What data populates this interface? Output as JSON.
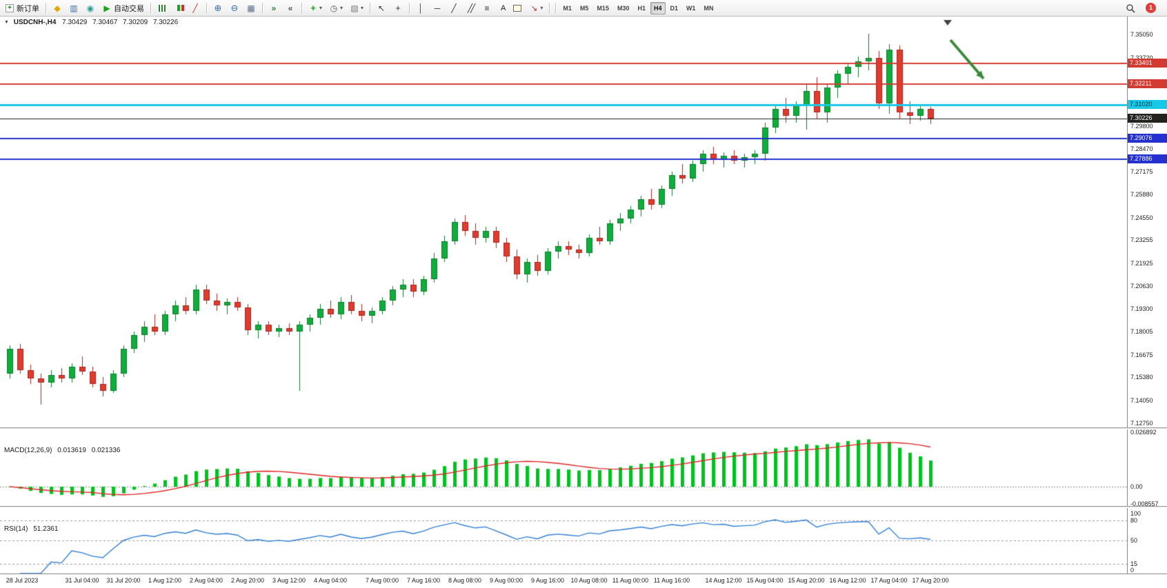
{
  "toolbar": {
    "notification_count": "1",
    "timeframes": [
      "M1",
      "M5",
      "M15",
      "M30",
      "H1",
      "H4",
      "D1",
      "W1",
      "MN"
    ],
    "active_timeframe": "H4",
    "buttons": [
      {
        "name": "new-order-button",
        "icon": "new-order",
        "label": "新订单"
      },
      "sep",
      {
        "name": "metaeditor-button",
        "icon": "metaeditor"
      },
      {
        "name": "market-watch-button",
        "icon": "market-watch"
      },
      {
        "name": "refresh-button",
        "icon": "refresh"
      },
      {
        "name": "autotrading-button",
        "icon": "autotrading",
        "label": "自动交易"
      },
      "sep",
      {
        "name": "bar-chart-button",
        "icon": "bars"
      },
      {
        "name": "candle-chart-button",
        "icon": "candles"
      },
      {
        "name": "line-chart-button",
        "icon": "line-chart"
      },
      "sep",
      {
        "name": "zoom-in-button",
        "icon": "zoom-in"
      },
      {
        "name": "zoom-out-button",
        "icon": "zoom-out"
      },
      {
        "name": "tile-windows-button",
        "icon": "tile-windows"
      },
      "sep",
      {
        "name": "auto-scroll-button",
        "icon": "auto-scroll"
      },
      {
        "name": "chart-shift-button",
        "icon": "chart-shift"
      },
      "sep",
      {
        "name": "indicators-button",
        "icon": "indicators",
        "caret": true
      },
      {
        "name": "periods-button",
        "icon": "periods",
        "caret": true
      },
      {
        "name": "templates-button",
        "icon": "templates",
        "caret": true
      },
      "sep",
      {
        "name": "cursor-button",
        "icon": "cursor"
      },
      {
        "name": "crosshair-button",
        "icon": "crosshair"
      },
      "sep",
      {
        "name": "vertical-line-button",
        "icon": "vline"
      },
      {
        "name": "horizontal-line-button",
        "icon": "hline"
      },
      {
        "name": "trendline-button",
        "icon": "trendline"
      },
      {
        "name": "channel-button",
        "icon": "channel"
      },
      {
        "name": "fibonacci-button",
        "icon": "fibo"
      },
      {
        "name": "text-tool-button",
        "label": "A"
      },
      {
        "name": "text-label-button",
        "icon": "text-label"
      },
      {
        "name": "arrows-button",
        "icon": "arrows",
        "caret": true
      },
      "sep"
    ]
  },
  "chart": {
    "title": "USDCNH-,H4",
    "open": "7.30429",
    "high": "7.30467",
    "low": "7.30209",
    "close": "7.30226"
  },
  "price_axis": {
    "ticks": [
      {
        "label": "7.35050",
        "value": 7.3505
      },
      {
        "label": "7.33720",
        "value": 7.3372
      },
      {
        "label": "7.29800",
        "value": 7.298
      },
      {
        "label": "7.28470",
        "value": 7.2847
      },
      {
        "label": "7.27175",
        "value": 7.27175
      },
      {
        "label": "7.25880",
        "value": 7.2588
      },
      {
        "label": "7.24550",
        "value": 7.2455
      },
      {
        "label": "7.23255",
        "value": 7.23255
      },
      {
        "label": "7.21925",
        "value": 7.21925
      },
      {
        "label": "7.20630",
        "value": 7.2063
      },
      {
        "label": "7.19300",
        "value": 7.193
      },
      {
        "label": "7.18005",
        "value": 7.18005
      },
      {
        "label": "7.16675",
        "value": 7.16675
      },
      {
        "label": "7.15380",
        "value": 7.1538
      },
      {
        "label": "7.14050",
        "value": 7.1405
      },
      {
        "label": "7.12750",
        "value": 7.1275
      }
    ]
  },
  "price_lines": [
    {
      "name": "resistance-line-1",
      "label": "7.33401",
      "value": 7.33401,
      "color": "#d23b32",
      "width": 2,
      "badge_bg": "#d23b32",
      "badge_fg": "#ffffff"
    },
    {
      "name": "resistance-line-2",
      "label": "7.32211",
      "value": 7.32211,
      "color": "#d23b32",
      "width": 2,
      "badge_bg": "#d23b32",
      "badge_fg": "#ffffff"
    },
    {
      "name": "pivot-line",
      "label": "7.31020",
      "value": 7.3102,
      "color": "#17c8e8",
      "width": 3,
      "badge_bg": "#17c8e8",
      "badge_fg": "#00323c"
    },
    {
      "name": "current-price-line",
      "label": "7.30226",
      "value": 7.30226,
      "color": "#23221e",
      "width": 1,
      "badge_bg": "#23221e",
      "badge_fg": "#ffffff"
    },
    {
      "name": "support-line-1",
      "label": "7.29076",
      "value": 7.29076,
      "color": "#2430cf",
      "width": 2,
      "badge_bg": "#2430cf",
      "badge_fg": "#ffffff"
    },
    {
      "name": "support-line-2",
      "label": "7.27886",
      "value": 7.27886,
      "color": "#2430cf",
      "width": 2,
      "badge_bg": "#2430cf",
      "badge_fg": "#ffffff"
    }
  ],
  "indicators": {
    "macd": {
      "title": "MACD(12,26,9)",
      "main_value": "0.013619",
      "signal_value": "0.021336",
      "fast": 12,
      "slow": 26,
      "signal": 9,
      "histogram_color": "#00c41e",
      "signal_color": "#e02222",
      "range": [
        -0.0095,
        0.0285
      ],
      "axis": [
        {
          "label": "0.026892",
          "value": 0.026892
        },
        {
          "label": "0.00",
          "value": 0
        },
        {
          "label": "-0.008557",
          "value": -0.008557
        }
      ]
    },
    "rsi": {
      "title": "RSI(14)",
      "value": "51.2361",
      "period": 14,
      "line_color": "#2f7ed8",
      "levels": [
        80,
        50,
        15
      ],
      "range": [
        0,
        100
      ],
      "axis": [
        {
          "label": "100",
          "value": 100
        },
        {
          "label": "80",
          "value": 80
        },
        {
          "label": "50",
          "value": 50
        },
        {
          "label": "15",
          "value": 15
        },
        {
          "label": "0",
          "value": 0
        }
      ]
    }
  },
  "time_axis": {
    "labels": [
      {
        "label": "28 Jul 2023",
        "index": 0
      },
      {
        "label": "31 Jul 04:00",
        "index": 7
      },
      {
        "label": "31 Jul 20:00",
        "index": 11
      },
      {
        "label": "1 Aug 12:00",
        "index": 15
      },
      {
        "label": "2 Aug 04:00",
        "index": 19
      },
      {
        "label": "2 Aug 20:00",
        "index": 23
      },
      {
        "label": "3 Aug 12:00",
        "index": 27
      },
      {
        "label": "4 Aug 04:00",
        "index": 31
      },
      {
        "label": "7 Aug 00:00",
        "index": 36
      },
      {
        "label": "7 Aug 16:00",
        "index": 40
      },
      {
        "label": "8 Aug 08:00",
        "index": 44
      },
      {
        "label": "9 Aug 00:00",
        "index": 48
      },
      {
        "label": "9 Aug 16:00",
        "index": 52
      },
      {
        "label": "10 Aug 08:00",
        "index": 56
      },
      {
        "label": "11 Aug 00:00",
        "index": 60
      },
      {
        "label": "11 Aug 16:00",
        "index": 64
      },
      {
        "label": "14 Aug 12:00",
        "index": 69
      },
      {
        "label": "15 Aug 04:00",
        "index": 73
      },
      {
        "label": "15 Aug 20:00",
        "index": 77
      },
      {
        "label": "16 Aug 12:00",
        "index": 81
      },
      {
        "label": "17 Aug 04:00",
        "index": 85
      },
      {
        "label": "17 Aug 20:00",
        "index": 89
      }
    ]
  },
  "chart_data": {
    "type": "candlestick",
    "symbol": "USDCNH-",
    "period": "H4",
    "price_range": [
      7.1251,
      7.3608
    ],
    "up_color": "#0fae3c",
    "up_border": "#0b7a2a",
    "down_color": "#e23b2e",
    "down_border": "#a2271d",
    "candles": [
      [
        7.156,
        7.172,
        7.153,
        7.17
      ],
      [
        7.17,
        7.173,
        7.156,
        7.158
      ],
      [
        7.158,
        7.161,
        7.15,
        7.153
      ],
      [
        7.153,
        7.156,
        7.138,
        7.151
      ],
      [
        7.151,
        7.158,
        7.148,
        7.155
      ],
      [
        7.155,
        7.159,
        7.151,
        7.153
      ],
      [
        7.153,
        7.162,
        7.151,
        7.16
      ],
      [
        7.16,
        7.166,
        7.155,
        7.157
      ],
      [
        7.157,
        7.16,
        7.148,
        7.15
      ],
      [
        7.15,
        7.154,
        7.143,
        7.146
      ],
      [
        7.146,
        7.158,
        7.145,
        7.156
      ],
      [
        7.156,
        7.172,
        7.154,
        7.17
      ],
      [
        7.17,
        7.18,
        7.168,
        7.178
      ],
      [
        7.178,
        7.186,
        7.174,
        7.183
      ],
      [
        7.183,
        7.19,
        7.178,
        7.18
      ],
      [
        7.18,
        7.192,
        7.178,
        7.19
      ],
      [
        7.19,
        7.198,
        7.186,
        7.195
      ],
      [
        7.195,
        7.2,
        7.19,
        7.192
      ],
      [
        7.192,
        7.207,
        7.19,
        7.204
      ],
      [
        7.204,
        7.207,
        7.196,
        7.198
      ],
      [
        7.198,
        7.202,
        7.192,
        7.195
      ],
      [
        7.195,
        7.199,
        7.19,
        7.197
      ],
      [
        7.197,
        7.2,
        7.192,
        7.194
      ],
      [
        7.194,
        7.196,
        7.178,
        7.181
      ],
      [
        7.181,
        7.186,
        7.176,
        7.184
      ],
      [
        7.184,
        7.186,
        7.178,
        7.18
      ],
      [
        7.18,
        7.184,
        7.177,
        7.182
      ],
      [
        7.182,
        7.185,
        7.178,
        7.18
      ],
      [
        7.18,
        7.186,
        7.146,
        7.184
      ],
      [
        7.184,
        7.19,
        7.18,
        7.188
      ],
      [
        7.188,
        7.196,
        7.184,
        7.193
      ],
      [
        7.193,
        7.198,
        7.188,
        7.19
      ],
      [
        7.19,
        7.2,
        7.187,
        7.197
      ],
      [
        7.197,
        7.201,
        7.19,
        7.192
      ],
      [
        7.192,
        7.196,
        7.186,
        7.189
      ],
      [
        7.189,
        7.194,
        7.185,
        7.192
      ],
      [
        7.192,
        7.2,
        7.19,
        7.198
      ],
      [
        7.198,
        7.206,
        7.195,
        7.204
      ],
      [
        7.204,
        7.21,
        7.2,
        7.207
      ],
      [
        7.207,
        7.21,
        7.2,
        7.203
      ],
      [
        7.203,
        7.212,
        7.201,
        7.21
      ],
      [
        7.21,
        7.225,
        7.208,
        7.222
      ],
      [
        7.222,
        7.235,
        7.22,
        7.232
      ],
      [
        7.232,
        7.245,
        7.23,
        7.243
      ],
      [
        7.243,
        7.247,
        7.235,
        7.238
      ],
      [
        7.238,
        7.242,
        7.23,
        7.234
      ],
      [
        7.234,
        7.24,
        7.231,
        7.238
      ],
      [
        7.238,
        7.24,
        7.228,
        7.231
      ],
      [
        7.231,
        7.234,
        7.22,
        7.223
      ],
      [
        7.223,
        7.227,
        7.21,
        7.213
      ],
      [
        7.213,
        7.222,
        7.208,
        7.22
      ],
      [
        7.22,
        7.224,
        7.212,
        7.215
      ],
      [
        7.215,
        7.228,
        7.213,
        7.226
      ],
      [
        7.226,
        7.232,
        7.222,
        7.229
      ],
      [
        7.229,
        7.232,
        7.224,
        7.227
      ],
      [
        7.227,
        7.23,
        7.222,
        7.225
      ],
      [
        7.225,
        7.236,
        7.223,
        7.234
      ],
      [
        7.234,
        7.24,
        7.23,
        7.232
      ],
      [
        7.232,
        7.244,
        7.23,
        7.242
      ],
      [
        7.242,
        7.248,
        7.238,
        7.245
      ],
      [
        7.245,
        7.252,
        7.242,
        7.25
      ],
      [
        7.25,
        7.258,
        7.246,
        7.256
      ],
      [
        7.256,
        7.262,
        7.25,
        7.253
      ],
      [
        7.253,
        7.264,
        7.251,
        7.262
      ],
      [
        7.262,
        7.272,
        7.258,
        7.27
      ],
      [
        7.27,
        7.276,
        7.265,
        7.268
      ],
      [
        7.268,
        7.278,
        7.266,
        7.276
      ],
      [
        7.276,
        7.284,
        7.272,
        7.282
      ],
      [
        7.282,
        7.286,
        7.276,
        7.279
      ],
      [
        7.279,
        7.283,
        7.274,
        7.281
      ],
      [
        7.281,
        7.284,
        7.276,
        7.278
      ],
      [
        7.278,
        7.282,
        7.274,
        7.28
      ],
      [
        7.28,
        7.284,
        7.276,
        7.282
      ],
      [
        7.282,
        7.3,
        7.278,
        7.297
      ],
      [
        7.297,
        7.31,
        7.294,
        7.308
      ],
      [
        7.308,
        7.314,
        7.3,
        7.304
      ],
      [
        7.304,
        7.312,
        7.3,
        7.31
      ],
      [
        7.31,
        7.322,
        7.296,
        7.318
      ],
      [
        7.318,
        7.326,
        7.302,
        7.306
      ],
      [
        7.306,
        7.322,
        7.3,
        7.32
      ],
      [
        7.32,
        7.33,
        7.314,
        7.328
      ],
      [
        7.328,
        7.334,
        7.322,
        7.332
      ],
      [
        7.332,
        7.338,
        7.326,
        7.335
      ],
      [
        7.335,
        7.351,
        7.33,
        7.337
      ],
      [
        7.337,
        7.341,
        7.308,
        7.311
      ],
      [
        7.311,
        7.345,
        7.305,
        7.342
      ],
      [
        7.342,
        7.344,
        7.302,
        7.306
      ],
      [
        7.306,
        7.312,
        7.299,
        7.304
      ],
      [
        7.304,
        7.31,
        7.301,
        7.308
      ],
      [
        7.308,
        7.309,
        7.299,
        7.3023
      ]
    ]
  },
  "annotation": {
    "type": "arrow",
    "color": "#3c8a3c"
  }
}
